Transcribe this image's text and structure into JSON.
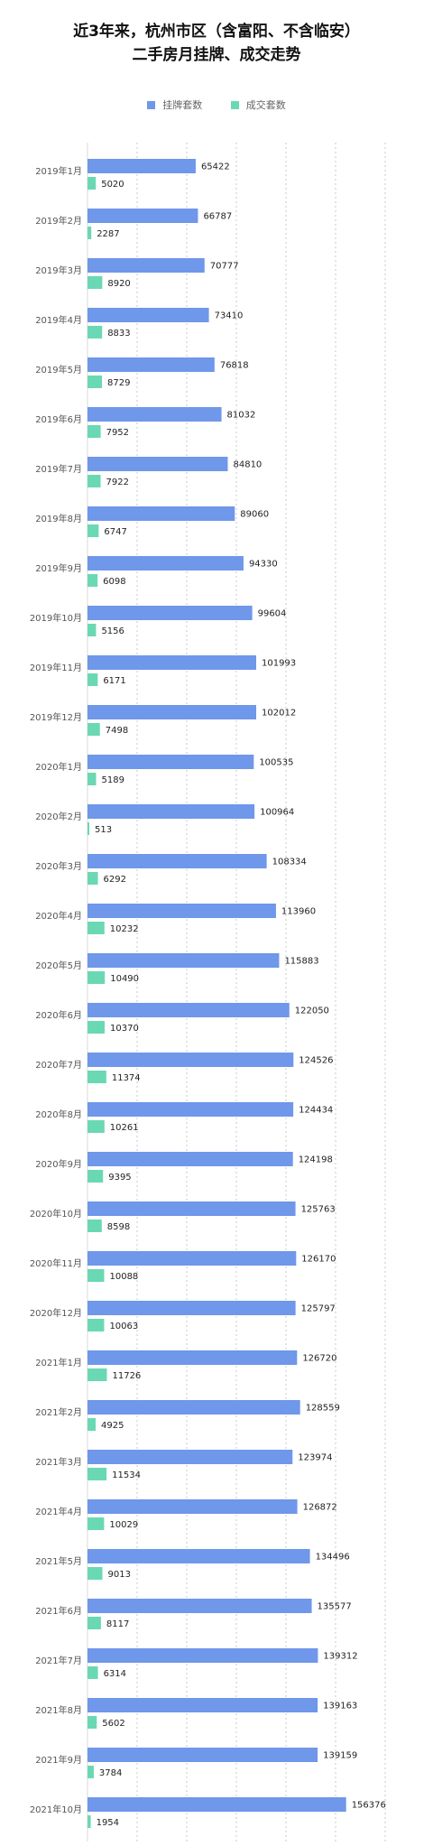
{
  "title_lines": [
    "近3年来，杭州市区（含富阳、不含临安）",
    "二手房月挂牌、成交走势"
  ],
  "colors": {
    "listing": "#6f97ea",
    "deal": "#6ad8b4",
    "grid": "#c9c9c9",
    "axis": "#d8d8d8"
  },
  "chart_data": {
    "type": "bar",
    "orientation": "horizontal",
    "title": "近3年来，杭州市区（含富阳、不含临安）二手房月挂牌、成交走势",
    "legend_position": "top",
    "grid": true,
    "categories": [
      "2019年1月",
      "2019年2月",
      "2019年3月",
      "2019年4月",
      "2019年5月",
      "2019年6月",
      "2019年7月",
      "2019年8月",
      "2019年9月",
      "2019年10月",
      "2019年11月",
      "2019年12月",
      "2020年1月",
      "2020年2月",
      "2020年3月",
      "2020年4月",
      "2020年5月",
      "2020年6月",
      "2020年7月",
      "2020年8月",
      "2020年9月",
      "2020年10月",
      "2020年11月",
      "2020年12月",
      "2021年1月",
      "2021年2月",
      "2021年3月",
      "2021年4月",
      "2021年5月",
      "2021年6月",
      "2021年7月",
      "2021年8月",
      "2021年9月",
      "2021年10月"
    ],
    "series": [
      {
        "name": "挂牌套数",
        "values": [
          65422,
          66787,
          70777,
          73410,
          76818,
          81032,
          84810,
          89060,
          94330,
          99604,
          101993,
          102012,
          100535,
          100964,
          108334,
          113960,
          115883,
          122050,
          124526,
          124434,
          124198,
          125763,
          126170,
          125797,
          126720,
          128559,
          123974,
          126872,
          134496,
          135577,
          139312,
          139163,
          139159,
          156376
        ]
      },
      {
        "name": "成交套数",
        "values": [
          5020,
          2287,
          8920,
          8833,
          8729,
          7952,
          7922,
          6747,
          6098,
          5156,
          6171,
          7498,
          5189,
          513,
          6292,
          10232,
          10490,
          10370,
          11374,
          10261,
          9395,
          8598,
          10088,
          10063,
          11726,
          4925,
          11534,
          10029,
          9013,
          8117,
          6314,
          5602,
          3784,
          1954
        ]
      }
    ],
    "xlim": [
      0,
      180000
    ],
    "xticks": [
      0,
      30000,
      60000,
      90000,
      120000,
      150000,
      180000
    ]
  }
}
